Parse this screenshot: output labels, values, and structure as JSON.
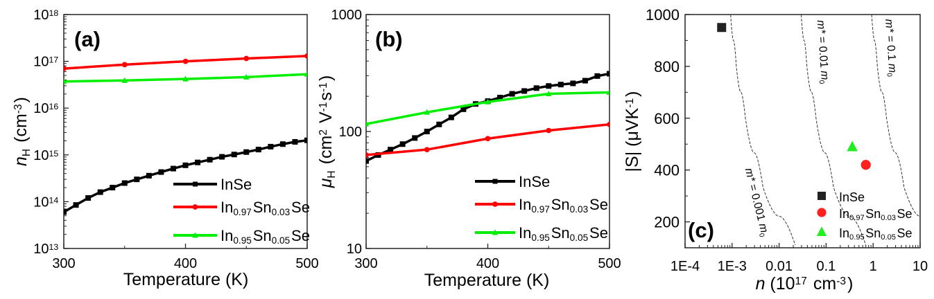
{
  "chart_data": [
    {
      "panel": "(a)",
      "type": "line",
      "xlabel": "Temperature (K)",
      "ylabel": [
        {
          "t": "n",
          "i": true
        },
        {
          "t": "H",
          "sub": true
        },
        {
          "t": " (cm"
        },
        {
          "t": "-3",
          "sup": true
        },
        {
          "t": ")"
        }
      ],
      "xlim": [
        300,
        500
      ],
      "ylim": [
        10000000000000.0,
        1e+18
      ],
      "yscale": "log",
      "xticks": [
        300,
        400,
        500
      ],
      "yticks": [
        {
          "b": "10",
          "e": "13",
          "v": 13
        },
        {
          "b": "10",
          "e": "14",
          "v": 14
        },
        {
          "b": "10",
          "e": "15",
          "v": 15
        },
        {
          "b": "10",
          "e": "16",
          "v": 16
        },
        {
          "b": "10",
          "e": "17",
          "v": 17
        },
        {
          "b": "10",
          "e": "18",
          "v": 18
        }
      ],
      "legend_position": "bottom-right",
      "series": [
        {
          "name": [
            {
              "t": "InSe"
            }
          ],
          "color": "#000000",
          "marker": "square",
          "x": [
            300,
            310,
            320,
            330,
            340,
            350,
            360,
            370,
            380,
            390,
            400,
            410,
            420,
            430,
            440,
            450,
            460,
            470,
            480,
            490,
            500
          ],
          "y": [
            60000000000000.0,
            85000000000000.0,
            120000000000000.0,
            160000000000000.0,
            200000000000000.0,
            250000000000000.0,
            300000000000000.0,
            360000000000000.0,
            430000000000000.0,
            510000000000000.0,
            600000000000000.0,
            690000000000000.0,
            790000000000000.0,
            910000000000000.0,
            1020000000000000.0,
            1150000000000000.0,
            1300000000000000.0,
            1500000000000000.0,
            1700000000000000.0,
            1900000000000000.0,
            2050000000000000.0
          ]
        },
        {
          "name": [
            {
              "t": "In"
            },
            {
              "t": "0.97",
              "sub": true
            },
            {
              "t": "Sn"
            },
            {
              "t": "0.03",
              "sub": true
            },
            {
              "t": "Se"
            }
          ],
          "color": "#ff0000",
          "marker": "circle",
          "x": [
            300,
            350,
            400,
            450,
            500
          ],
          "y": [
            7e+16,
            8.5e+16,
            1e+17,
            1.15e+17,
            1.3e+17
          ]
        },
        {
          "name": [
            {
              "t": "In"
            },
            {
              "t": "0.95",
              "sub": true
            },
            {
              "t": "Sn"
            },
            {
              "t": "0.05",
              "sub": true
            },
            {
              "t": "Se"
            }
          ],
          "color": "#00ee00",
          "marker": "triangle",
          "x": [
            300,
            350,
            400,
            450,
            500
          ],
          "y": [
            3.7e+16,
            3.9e+16,
            4.2e+16,
            4.6e+16,
            5.3e+16
          ]
        }
      ]
    },
    {
      "panel": "(b)",
      "type": "line",
      "xlabel": "Temperature (K)",
      "ylabel": [
        {
          "t": "μ",
          "i": true
        },
        {
          "t": "H",
          "sub": true
        },
        {
          "t": " (cm"
        },
        {
          "t": "2",
          "sup": true
        },
        {
          "t": " V"
        },
        {
          "t": "-1",
          "sup": true
        },
        {
          "t": "s"
        },
        {
          "t": "-1",
          "sup": true
        },
        {
          "t": ")"
        }
      ],
      "xlim": [
        300,
        500
      ],
      "ylim": [
        10,
        1000
      ],
      "yscale": "log",
      "xticks": [
        300,
        400,
        500
      ],
      "yticks": [
        {
          "b": "10",
          "v": 1
        },
        {
          "b": "100",
          "v": 2
        },
        {
          "b": "1000",
          "v": 3
        }
      ],
      "legend_position": "bottom-right",
      "series": [
        {
          "name": [
            {
              "t": "InSe"
            }
          ],
          "color": "#000000",
          "marker": "square",
          "x": [
            300,
            310,
            320,
            330,
            340,
            350,
            360,
            370,
            380,
            390,
            400,
            410,
            420,
            430,
            440,
            450,
            460,
            470,
            480,
            490,
            500
          ],
          "y": [
            56,
            63,
            70,
            78,
            88,
            100,
            115,
            132,
            155,
            172,
            182,
            195,
            210,
            222,
            235,
            245,
            252,
            258,
            272,
            298,
            312
          ]
        },
        {
          "name": [
            {
              "t": "In"
            },
            {
              "t": "0.97",
              "sub": true
            },
            {
              "t": "Sn"
            },
            {
              "t": "0.03",
              "sub": true
            },
            {
              "t": "Se"
            }
          ],
          "color": "#ff0000",
          "marker": "circle",
          "x": [
            300,
            350,
            400,
            450,
            500
          ],
          "y": [
            63,
            70,
            87,
            102,
            115
          ]
        },
        {
          "name": [
            {
              "t": "In"
            },
            {
              "t": "0.95",
              "sub": true
            },
            {
              "t": "Sn"
            },
            {
              "t": "0.05",
              "sub": true
            },
            {
              "t": "Se"
            }
          ],
          "color": "#00ee00",
          "marker": "triangle",
          "x": [
            300,
            350,
            400,
            450,
            500
          ],
          "y": [
            116,
            146,
            179,
            210,
            216
          ]
        }
      ]
    },
    {
      "panel": "(c)",
      "type": "scatter",
      "xlabel": [
        {
          "t": "n",
          "i": true
        },
        {
          "t": " (10"
        },
        {
          "t": "17",
          "sup": true
        },
        {
          "t": " cm"
        },
        {
          "t": "-3",
          "sup": true
        },
        {
          "t": ")"
        }
      ],
      "ylabel": [
        {
          "t": "|S| (μVK"
        },
        {
          "t": "-1",
          "sup": true
        },
        {
          "t": ")"
        }
      ],
      "xlim": [
        0.0001,
        10
      ],
      "xscale": "log",
      "ylim": [
        100,
        1000
      ],
      "xticks": [
        {
          "l": "1E-4",
          "v": -4
        },
        {
          "l": "1E-3",
          "v": -3
        },
        {
          "l": "0.01",
          "v": -2
        },
        {
          "l": "0.1",
          "v": -1
        },
        {
          "l": "1",
          "v": 0
        },
        {
          "l": "10",
          "v": 1
        }
      ],
      "yticks": [
        200,
        400,
        600,
        800,
        1000
      ],
      "legend_position": "bottom-right",
      "series": [
        {
          "name": [
            {
              "t": "InSe"
            }
          ],
          "color": "#222222",
          "marker": "square",
          "x": [
            0.0006
          ],
          "y": [
            950
          ]
        },
        {
          "name": [
            {
              "t": "In"
            },
            {
              "t": "0.97",
              "sub": true
            },
            {
              "t": "Sn"
            },
            {
              "t": "0.03",
              "sub": true
            },
            {
              "t": "Se"
            }
          ],
          "color": "#ff2020",
          "marker": "circle",
          "x": [
            0.7
          ],
          "y": [
            420
          ]
        },
        {
          "name": [
            {
              "t": "In"
            },
            {
              "t": "0.95",
              "sub": true
            },
            {
              "t": "Sn"
            },
            {
              "t": "0.05",
              "sub": true
            },
            {
              "t": "Se"
            }
          ],
          "color": "#22ee22",
          "marker": "triangle",
          "x": [
            0.36
          ],
          "y": [
            490
          ]
        }
      ],
      "reference_curves": [
        {
          "label": [
            {
              "t": "m*",
              "i": true
            },
            {
              "t": " = 0.001 "
            },
            {
              "t": "m",
              "i": true
            },
            {
              "t": "0",
              "sub": true
            }
          ],
          "x": [
            0.00093,
            0.00123,
            0.00192,
            0.00455,
            0.0221
          ],
          "y": [
            1000,
            800,
            600,
            333,
            110
          ]
        },
        {
          "label": [
            {
              "t": "m*",
              "i": true
            },
            {
              "t": " = 0.01 "
            },
            {
              "t": "m",
              "i": true
            },
            {
              "t": "0",
              "sub": true
            }
          ],
          "x": [
            0.0295,
            0.039,
            0.061,
            0.144,
            0.7
          ],
          "y": [
            1000,
            800,
            600,
            333,
            110
          ]
        },
        {
          "label": [
            {
              "t": "m*",
              "i": true
            },
            {
              "t": " = 0.1 "
            },
            {
              "t": "m",
              "i": true
            },
            {
              "t": "0",
              "sub": true
            }
          ],
          "x": [
            0.93,
            1.23,
            1.93,
            4.55,
            22.1
          ],
          "y": [
            1000,
            800,
            600,
            333,
            110
          ]
        }
      ]
    }
  ]
}
